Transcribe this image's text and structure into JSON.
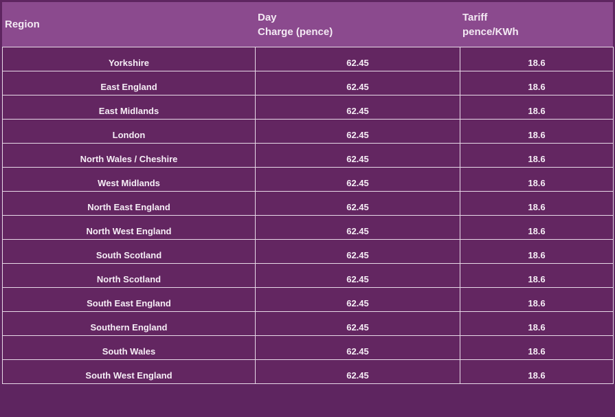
{
  "headers": {
    "region": "Region",
    "day_line1": "Day",
    "day_line2": "Charge (pence)",
    "tariff_line1": "Tariff",
    "tariff_line2": "pence/KWh"
  },
  "rows": [
    {
      "region": "Yorkshire",
      "day_charge": "62.45",
      "tariff": "18.6"
    },
    {
      "region": "East England",
      "day_charge": "62.45",
      "tariff": "18.6"
    },
    {
      "region": "East Midlands",
      "day_charge": "62.45",
      "tariff": "18.6"
    },
    {
      "region": "London",
      "day_charge": "62.45",
      "tariff": "18.6"
    },
    {
      "region": "North Wales / Cheshire",
      "day_charge": "62.45",
      "tariff": "18.6"
    },
    {
      "region": "West Midlands",
      "day_charge": "62.45",
      "tariff": "18.6"
    },
    {
      "region": "North East England",
      "day_charge": "62.45",
      "tariff": "18.6"
    },
    {
      "region": "North West England",
      "day_charge": "62.45",
      "tariff": "18.6"
    },
    {
      "region": "South Scotland",
      "day_charge": "62.45",
      "tariff": "18.6"
    },
    {
      "region": "North Scotland",
      "day_charge": "62.45",
      "tariff": "18.6"
    },
    {
      "region": "South East England",
      "day_charge": "62.45",
      "tariff": "18.6"
    },
    {
      "region": "Southern England",
      "day_charge": "62.45",
      "tariff": "18.6"
    },
    {
      "region": "South Wales",
      "day_charge": "62.45",
      "tariff": "18.6"
    },
    {
      "region": "South West England",
      "day_charge": "62.45",
      "tariff": "18.6"
    }
  ],
  "colors": {
    "header_bg": "#8b4a8e",
    "row_bg": "#632661",
    "border": "#e9dbe9"
  }
}
